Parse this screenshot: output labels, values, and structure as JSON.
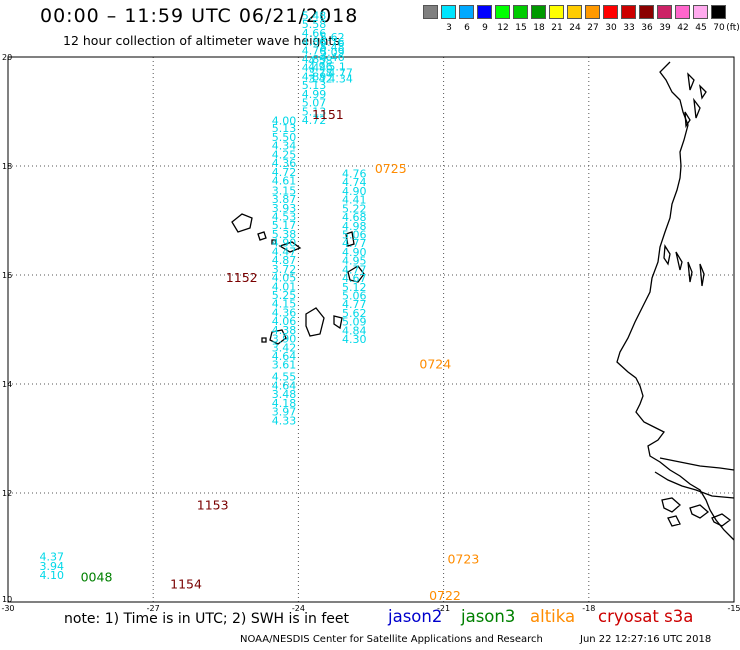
{
  "header": {
    "title": "00:00 – 11:59 UTC 06/21/2018",
    "subtitle": "12 hour collection of altimeter wave heights"
  },
  "legend": {
    "unit": "(ft)",
    "levels": [
      {
        "label": "",
        "color": "#808080"
      },
      {
        "label": "3",
        "color": "#00e5ff"
      },
      {
        "label": "6",
        "color": "#00a9ff"
      },
      {
        "label": "9",
        "color": "#0000ff"
      },
      {
        "label": "12",
        "color": "#00ff00"
      },
      {
        "label": "15",
        "color": "#00cc00"
      },
      {
        "label": "18",
        "color": "#009900"
      },
      {
        "label": "21",
        "color": "#ffff00"
      },
      {
        "label": "24",
        "color": "#ffcc00"
      },
      {
        "label": "27",
        "color": "#ff9900"
      },
      {
        "label": "30",
        "color": "#ff0000"
      },
      {
        "label": "33",
        "color": "#cc0000"
      },
      {
        "label": "36",
        "color": "#8b0000"
      },
      {
        "label": "39",
        "color": "#cc2266"
      },
      {
        "label": "42",
        "color": "#ff66cc"
      },
      {
        "label": "45",
        "color": "#ffaaee"
      },
      {
        "label": "70",
        "color": "#000000"
      }
    ]
  },
  "map": {
    "lon_ticks": [
      "-30",
      "-27",
      "-24",
      "-21",
      "-18",
      "-15"
    ],
    "lat_ticks": [
      "20",
      "18",
      "16",
      "14",
      "12",
      "10"
    ],
    "lon_range": [
      -30,
      -15
    ],
    "lat_range": [
      10,
      20
    ],
    "colors": {
      "swh": "#00d8e8",
      "jason3": "#008000",
      "altika": "#ff8c00",
      "cryosat": "#7a0000"
    },
    "tracks": [
      {
        "lon": -23.55,
        "start_lat": 19.93,
        "step": -0.09,
        "values": [
          "4.46",
          "5.09",
          "5.48",
          "5.76",
          "5.62"
        ]
      },
      {
        "lon": -23.8,
        "start_lat": 19.53,
        "step": -0.11,
        "values": [
          "3.42",
          "3.78",
          "4.96",
          "4.58"
        ]
      },
      {
        "lon": -23.38,
        "start_lat": 19.53,
        "step": -0.11,
        "values": [
          "4.34",
          "4.77",
          "5.1"
        ]
      },
      {
        "lon": -24.55,
        "start_lat": 18.76,
        "step": -0.16,
        "values": [
          "4.00",
          "5.13",
          "5.50",
          "4.34",
          "4.25",
          "4.36",
          "4.72",
          "4.61",
          "3.15",
          "3.87",
          "3.93",
          "4.53",
          "5.17",
          "5.38",
          "4.90",
          "4.47",
          "4.87",
          "3.72",
          "4.05",
          "4.01",
          "5.25",
          "4.15",
          "4.36",
          "4.06",
          "4.38",
          "3.90",
          "3.42",
          "4.64",
          "3.61",
          "4.55",
          "4.64",
          "3.48",
          "4.18",
          "3.97",
          "4.33"
        ],
        "spacing": [
          0,
          0.14,
          0.16,
          0.16,
          0.16,
          0.16,
          0.16,
          0.16,
          0.18,
          0.16,
          0.16,
          0.16,
          0.16,
          0.16,
          0.16,
          0.16,
          0.16,
          0.16,
          0.16,
          0.16,
          0.16,
          0.16,
          0.16,
          0.16,
          0.16,
          0.16,
          0.16,
          0.16,
          0.16,
          0.22,
          0.16,
          0.16,
          0.16,
          0.16,
          0.16
        ]
      },
      {
        "lon": -23.93,
        "start_lat": 18.77,
        "step": -0.16,
        "values": [
          "4.72",
          "5.13",
          "5.07",
          "4.99",
          "5.13",
          "4.89",
          "4.44",
          "4.83",
          "4.70",
          "4.86",
          "4.66",
          "5.58",
          "5.48"
        ]
      },
      {
        "lon": -23.1,
        "start_lat": 14.75,
        "step": -0.16,
        "values": [
          "4.30",
          "4.84",
          "5.09",
          "5.62",
          "4.77",
          "5.06",
          "5.12",
          "4.67",
          "4.77",
          "4.95",
          "4.90",
          "4.77",
          "5.06",
          "4.98",
          "4.68",
          "5.22",
          "4.41",
          "4.90",
          "4.74",
          "4.76"
        ]
      },
      {
        "lon": -29.35,
        "start_lat": 10.42,
        "step": -0.17,
        "values": [
          "4.10",
          "3.94",
          "4.37"
        ]
      }
    ],
    "pass_labels": [
      {
        "text": "1151",
        "series": "cryosat",
        "lon": -23.72,
        "lat": 18.86
      },
      {
        "text": "0725",
        "series": "altika",
        "lon": -22.42,
        "lat": 17.87
      },
      {
        "text": "1152",
        "series": "cryosat",
        "lon": -25.5,
        "lat": 15.87
      },
      {
        "text": "0724",
        "series": "altika",
        "lon": -21.5,
        "lat": 14.28
      },
      {
        "text": "1153",
        "series": "cryosat",
        "lon": -26.1,
        "lat": 11.7
      },
      {
        "text": "0723",
        "series": "altika",
        "lon": -20.92,
        "lat": 10.71
      },
      {
        "text": "0048",
        "series": "jason3",
        "lon": -28.5,
        "lat": 10.38
      },
      {
        "text": "1154",
        "series": "cryosat",
        "lon": -26.65,
        "lat": 10.25
      },
      {
        "text": "0722",
        "series": "altika",
        "lon": -21.3,
        "lat": 10.04
      }
    ]
  },
  "footer": {
    "note": "note: 1) Time is in UTC; 2) SWH is in feet",
    "satellites": [
      {
        "name": "jason2",
        "color": "#0000cc"
      },
      {
        "name": "jason3",
        "color": "#008000"
      },
      {
        "name": "altika",
        "color": "#ff8c00"
      },
      {
        "name": "cryosat s3a",
        "color": "#cc0000"
      }
    ],
    "credit": "NOAA/NESDIS Center for Satellite Applications and Research",
    "timestamp": "Jun 22 12:27:16 UTC 2018"
  }
}
